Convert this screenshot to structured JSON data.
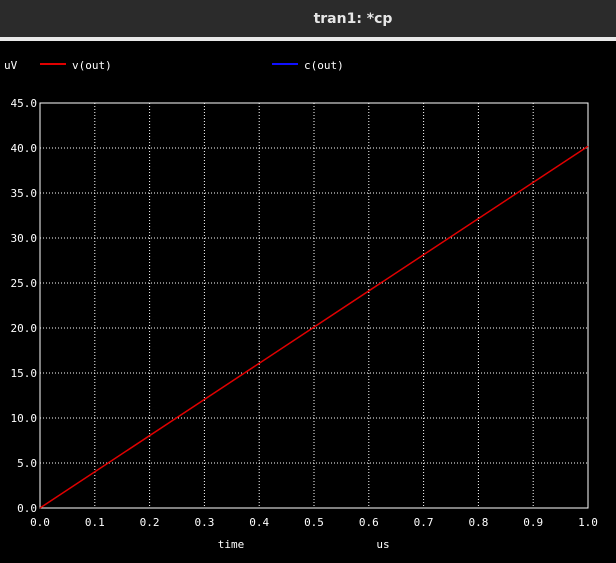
{
  "window": {
    "title": "tran1: *cp"
  },
  "colors": {
    "background": "#000000",
    "grid": "#ffffff",
    "series_vout": "#e00000",
    "series_cout": "#1010ff"
  },
  "chart_data": {
    "type": "line",
    "ylabel": "uV",
    "xlabel_left": "time",
    "xlabel_right": "us",
    "xlim": [
      0.0,
      1.0
    ],
    "ylim": [
      0.0,
      45.0
    ],
    "x_ticks": [
      "0.0",
      "0.1",
      "0.2",
      "0.3",
      "0.4",
      "0.5",
      "0.6",
      "0.7",
      "0.8",
      "0.9",
      "1.0"
    ],
    "y_ticks": [
      "0.0",
      "5.0",
      "10.0",
      "15.0",
      "20.0",
      "25.0",
      "30.0",
      "35.0",
      "40.0",
      "45.0"
    ],
    "grid": true,
    "legend_placement": "top",
    "series": [
      {
        "name": "v(out)",
        "color": "#e00000",
        "x": [
          0.0,
          1.0
        ],
        "y": [
          0.0,
          40.2
        ]
      },
      {
        "name": "c(out)",
        "color": "#1010ff",
        "x": [],
        "y": []
      }
    ]
  }
}
